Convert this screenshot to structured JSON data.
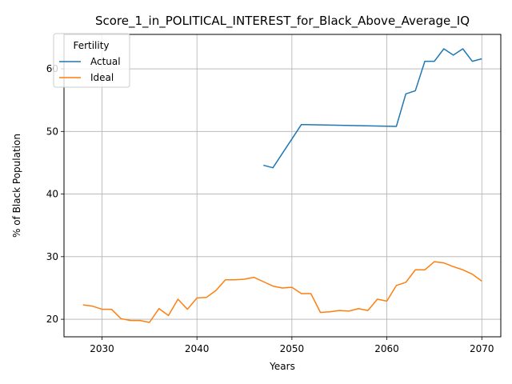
{
  "chart_data": {
    "type": "line",
    "title": "Score_1_in_POLITICAL_INTEREST_for_Black_Above_Average_IQ",
    "xlabel": "Years",
    "ylabel": "% of Black Population",
    "xlim": [
      2026,
      2072
    ],
    "ylim": [
      17.2,
      65.5
    ],
    "xticks": [
      2030,
      2040,
      2050,
      2060,
      2070
    ],
    "yticks": [
      20,
      30,
      40,
      50,
      60
    ],
    "grid": true,
    "legend": {
      "title": "Fertility",
      "placement": "top-left"
    },
    "series": [
      {
        "name": "Actual",
        "color": "#1f77b4",
        "x": [
          2047,
          2048,
          2051,
          2061,
          2062,
          2063,
          2064,
          2065,
          2066,
          2067,
          2068,
          2069,
          2070
        ],
        "y": [
          44.6,
          44.2,
          51.1,
          50.8,
          56.0,
          56.5,
          61.2,
          61.2,
          63.2,
          62.2,
          63.2,
          61.2,
          61.6
        ]
      },
      {
        "name": "Ideal",
        "color": "#ff7f0e",
        "x": [
          2028,
          2029,
          2030,
          2031,
          2032,
          2033,
          2034,
          2035,
          2036,
          2037,
          2038,
          2039,
          2040,
          2041,
          2042,
          2043,
          2044,
          2045,
          2046,
          2047,
          2048,
          2049,
          2050,
          2051,
          2052,
          2053,
          2054,
          2055,
          2056,
          2057,
          2058,
          2059,
          2060,
          2061,
          2062,
          2063,
          2064,
          2065,
          2066,
          2067,
          2068,
          2069,
          2070
        ],
        "y": [
          22.3,
          22.1,
          21.6,
          21.6,
          20.1,
          19.8,
          19.8,
          19.5,
          21.7,
          20.6,
          23.2,
          21.6,
          23.4,
          23.5,
          24.6,
          26.3,
          26.3,
          26.4,
          26.7,
          26.0,
          25.3,
          25.0,
          25.1,
          24.1,
          24.1,
          21.1,
          21.2,
          21.4,
          21.3,
          21.7,
          21.4,
          23.2,
          22.9,
          25.4,
          25.9,
          27.9,
          27.9,
          29.2,
          29.0,
          28.4,
          27.9,
          27.2,
          26.1
        ]
      }
    ]
  }
}
